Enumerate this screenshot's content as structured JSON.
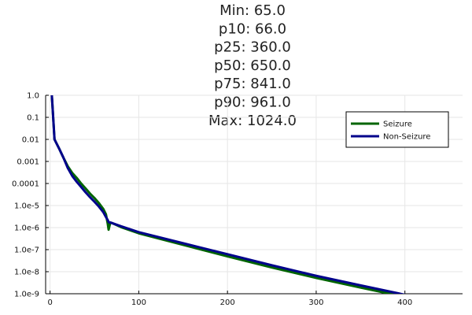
{
  "chart_data": {
    "type": "line",
    "title_lines": [
      "Min: 65.0",
      "p10: 66.0",
      "p25: 360.0",
      "p50: 650.0",
      "p75: 841.0",
      "p90: 961.0",
      "Max: 1024.0"
    ],
    "xlabel": "",
    "ylabel": "",
    "yscale": "log",
    "xlim": [
      -5,
      465
    ],
    "ylim": [
      1e-09,
      1.0
    ],
    "grid": true,
    "legend_position": "top-right",
    "x_ticks": [
      0,
      100,
      200,
      300,
      400
    ],
    "x_tick_labels": [
      "0",
      "100",
      "200",
      "300",
      "400"
    ],
    "y_ticks": [
      1e-09,
      1e-08,
      1e-07,
      1e-06,
      1e-05,
      0.0001,
      0.001,
      0.01,
      0.1,
      1.0
    ],
    "y_tick_labels": [
      "1.0e-9",
      "1.0e-8",
      "1.0e-7",
      "1.0e-6",
      "1.0e-5",
      "0.0001",
      "0.001",
      "0.01",
      "0.1",
      "1.0"
    ],
    "series": [
      {
        "name": "Seizure",
        "color": "#006400",
        "points": [
          [
            2,
            1.0
          ],
          [
            5,
            0.01
          ],
          [
            10,
            0.004
          ],
          [
            15,
            0.0015
          ],
          [
            20,
            0.0006
          ],
          [
            25,
            0.0003
          ],
          [
            30,
            0.00018
          ],
          [
            35,
            0.0001
          ],
          [
            40,
            6e-05
          ],
          [
            45,
            3.5e-05
          ],
          [
            50,
            2.2e-05
          ],
          [
            55,
            1.3e-05
          ],
          [
            60,
            7e-06
          ],
          [
            63,
            4e-06
          ],
          [
            65,
            1.5e-06
          ],
          [
            66,
            8e-07
          ],
          [
            67,
            1.2e-06
          ],
          [
            68,
            1.7e-06
          ],
          [
            70,
            1.6e-06
          ],
          [
            80,
            1.05e-06
          ],
          [
            100,
            5.5e-07
          ],
          [
            150,
            1.65e-07
          ],
          [
            200,
            4.95e-08
          ],
          [
            250,
            1.55e-08
          ],
          [
            300,
            5.2e-09
          ],
          [
            350,
            1.9e-09
          ],
          [
            400,
            7.2e-10
          ],
          [
            450,
            2.4e-10
          ]
        ]
      },
      {
        "name": "Non-Seizure",
        "color": "#00008b",
        "points": [
          [
            2,
            1.0
          ],
          [
            5,
            0.01
          ],
          [
            10,
            0.004
          ],
          [
            15,
            0.0015
          ],
          [
            20,
            0.0005
          ],
          [
            25,
            0.00022
          ],
          [
            30,
            0.00012
          ],
          [
            35,
            7e-05
          ],
          [
            40,
            4e-05
          ],
          [
            45,
            2.4e-05
          ],
          [
            50,
            1.5e-05
          ],
          [
            55,
            9e-06
          ],
          [
            60,
            5e-06
          ],
          [
            63,
            3e-06
          ],
          [
            65,
            2.2e-06
          ],
          [
            66,
            1.8e-06
          ],
          [
            67,
            1.7e-06
          ],
          [
            68,
            1.7e-06
          ],
          [
            70,
            1.6e-06
          ],
          [
            80,
            1.15e-06
          ],
          [
            100,
            6.2e-07
          ],
          [
            150,
            1.95e-07
          ],
          [
            200,
            6.2e-08
          ],
          [
            250,
            1.95e-08
          ],
          [
            300,
            6.5e-09
          ],
          [
            350,
            2.4e-09
          ],
          [
            400,
            9e-10
          ],
          [
            450,
            3.2e-10
          ]
        ]
      }
    ]
  }
}
